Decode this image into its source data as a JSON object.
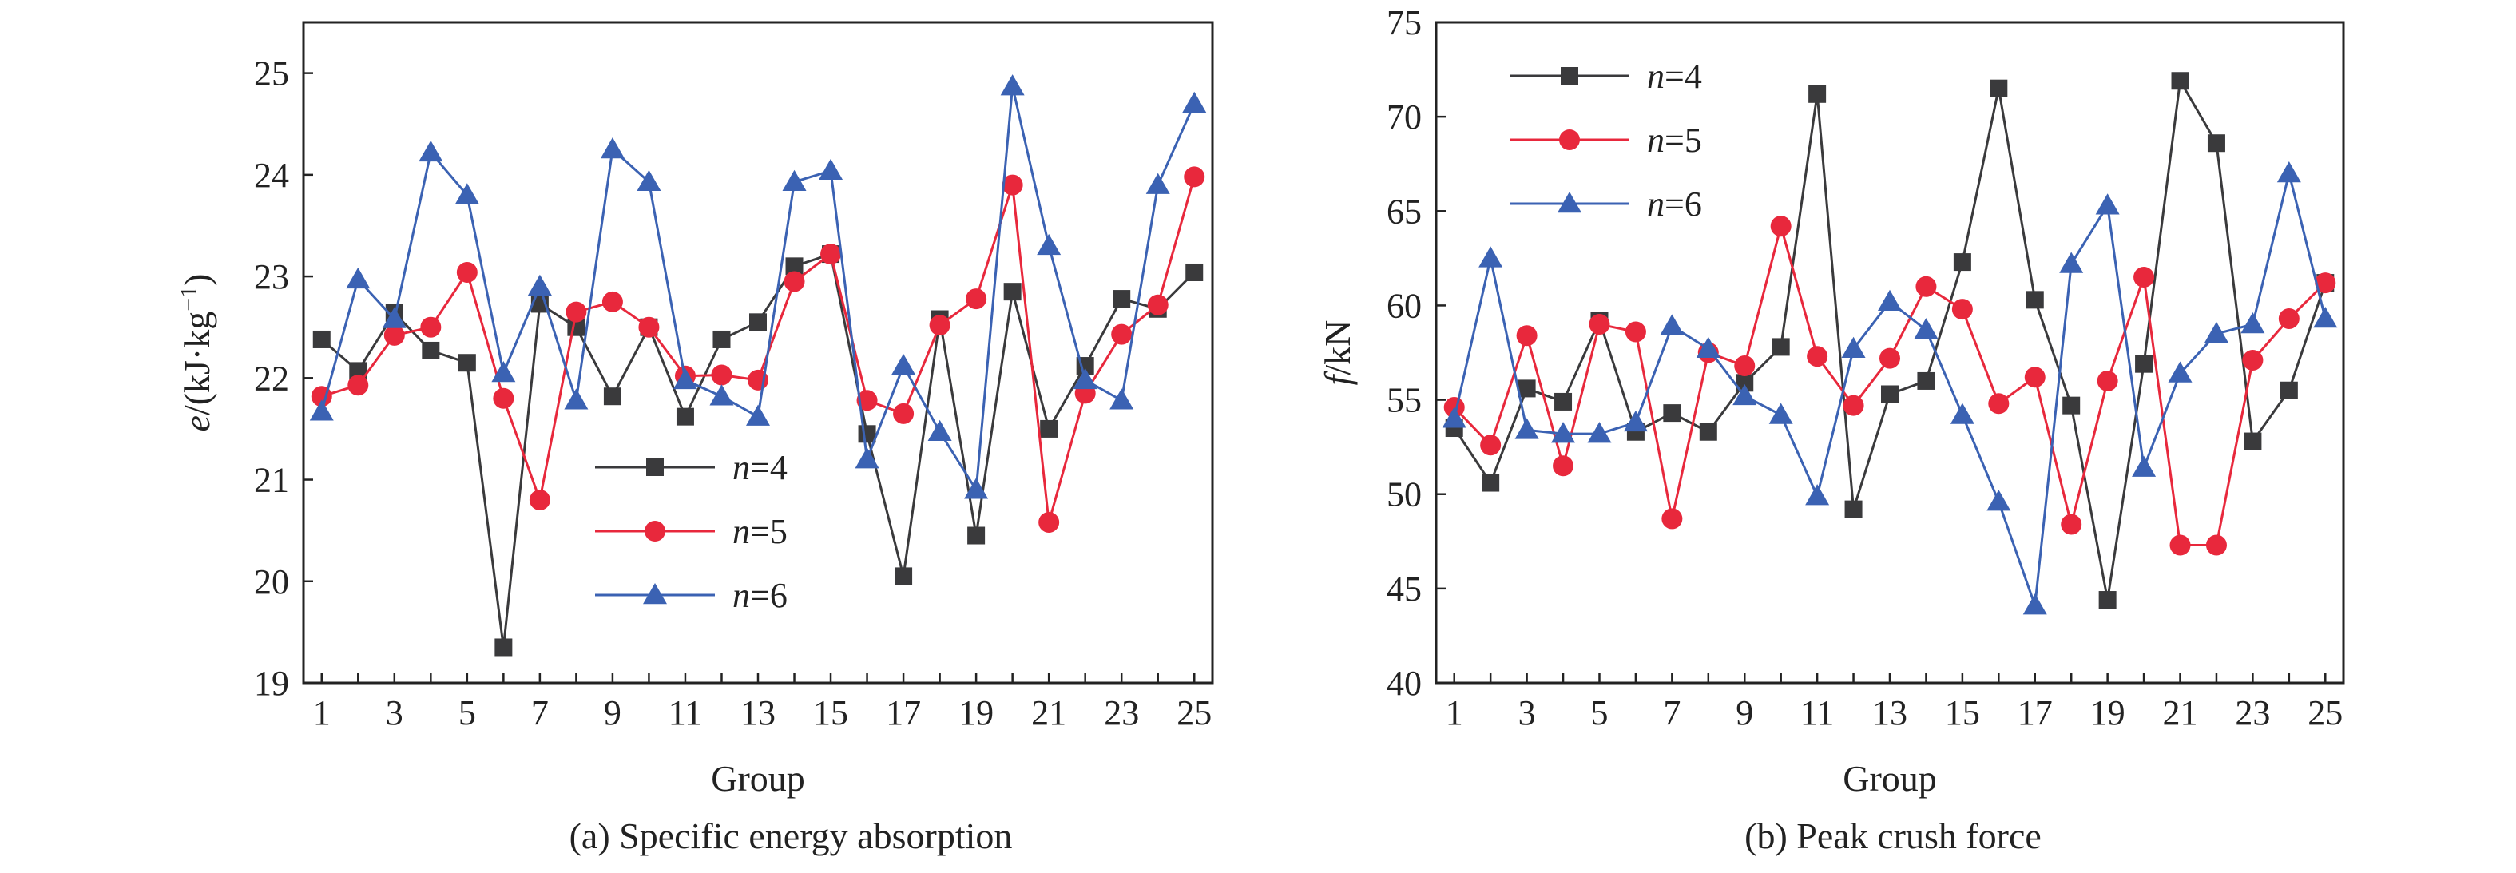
{
  "figure": {
    "colors": {
      "n4": "#3a3a3c",
      "n5": "#e8283c",
      "n6": "#3b62b3",
      "axis": "#222222"
    }
  },
  "chart_data": [
    {
      "type": "line",
      "caption": "(a) Specific energy absorption",
      "xlabel": "Group",
      "ylabel_main": "e",
      "ylabel_unit": "/(kJ·kg",
      "ylabel_sup": "−1",
      "ylabel_close": ")",
      "xlim": [
        0.5,
        25.5
      ],
      "ylim": [
        19,
        25.5
      ],
      "xticks": [
        1,
        3,
        5,
        7,
        9,
        11,
        13,
        15,
        17,
        19,
        21,
        23,
        25
      ],
      "yticks": [
        19,
        20,
        21,
        22,
        23,
        24,
        25
      ],
      "grid": false,
      "legend_position": "lower-center",
      "x": [
        1,
        2,
        3,
        4,
        5,
        6,
        7,
        8,
        9,
        10,
        11,
        12,
        13,
        14,
        15,
        16,
        17,
        18,
        19,
        20,
        21,
        22,
        23,
        24,
        25
      ],
      "series": [
        {
          "name_var": "n",
          "name_rest": "=4",
          "color": "#3a3a3c",
          "marker": "square",
          "values": [
            22.38,
            22.07,
            22.64,
            22.27,
            22.15,
            19.35,
            22.73,
            22.5,
            21.82,
            22.5,
            21.62,
            22.38,
            22.55,
            23.1,
            23.22,
            21.45,
            20.05,
            22.58,
            20.45,
            22.85,
            21.5,
            22.12,
            22.78,
            22.68,
            23.04
          ]
        },
        {
          "name_var": "n",
          "name_rest": "=5",
          "color": "#e8283c",
          "marker": "circle",
          "values": [
            21.82,
            21.93,
            22.42,
            22.5,
            23.04,
            21.8,
            20.8,
            22.65,
            22.75,
            22.5,
            22.02,
            22.03,
            21.98,
            22.95,
            23.22,
            21.78,
            21.65,
            22.52,
            22.78,
            23.9,
            20.58,
            21.85,
            22.43,
            22.72,
            23.98
          ]
        },
        {
          "name_var": "n",
          "name_rest": "=6",
          "color": "#3b62b3",
          "marker": "triangle",
          "values": [
            21.67,
            22.97,
            22.58,
            24.22,
            23.8,
            22.05,
            22.9,
            21.78,
            24.25,
            23.93,
            21.98,
            21.82,
            21.62,
            23.93,
            24.04,
            21.2,
            22.12,
            21.47,
            20.9,
            24.87,
            23.3,
            21.98,
            21.78,
            23.9,
            24.7
          ]
        }
      ]
    },
    {
      "type": "line",
      "caption": "(b) Peak crush force",
      "xlabel": "Group",
      "ylabel_main": "f",
      "ylabel_unit": "/kN",
      "xlim": [
        0.5,
        25.5
      ],
      "ylim": [
        40,
        75
      ],
      "xticks": [
        1,
        3,
        5,
        7,
        9,
        11,
        13,
        15,
        17,
        19,
        21,
        23,
        25
      ],
      "yticks": [
        40,
        45,
        50,
        55,
        60,
        65,
        70,
        75
      ],
      "grid": false,
      "legend_position": "top-left",
      "x": [
        1,
        2,
        3,
        4,
        5,
        6,
        7,
        8,
        9,
        10,
        11,
        12,
        13,
        14,
        15,
        16,
        17,
        18,
        19,
        20,
        21,
        22,
        23,
        24,
        25
      ],
      "series": [
        {
          "name_var": "n",
          "name_rest": "=4",
          "color": "#3a3a3c",
          "marker": "square",
          "values": [
            53.5,
            50.6,
            55.6,
            54.9,
            59.2,
            53.3,
            54.3,
            53.3,
            55.9,
            57.8,
            71.2,
            49.2,
            55.3,
            56.0,
            62.3,
            71.5,
            60.3,
            54.7,
            44.4,
            56.9,
            71.9,
            68.6,
            52.8,
            55.5,
            61.2
          ]
        },
        {
          "name_var": "n",
          "name_rest": "=5",
          "color": "#e8283c",
          "marker": "circle",
          "values": [
            54.6,
            52.6,
            58.4,
            51.5,
            59.0,
            58.6,
            48.7,
            57.5,
            56.8,
            64.2,
            57.3,
            54.7,
            57.2,
            61.0,
            59.8,
            54.8,
            56.2,
            48.4,
            56.0,
            61.5,
            47.3,
            47.3,
            57.1,
            59.3,
            61.2
          ]
        },
        {
          "name_var": "n",
          "name_rest": "=6",
          "color": "#3b62b3",
          "marker": "triangle",
          "values": [
            54.0,
            62.5,
            53.4,
            53.2,
            53.2,
            53.8,
            58.9,
            57.7,
            55.2,
            54.2,
            49.9,
            57.7,
            60.2,
            58.7,
            54.2,
            49.6,
            44.1,
            62.2,
            65.3,
            51.4,
            56.4,
            58.5,
            59.0,
            67.0,
            59.3
          ]
        }
      ]
    }
  ]
}
